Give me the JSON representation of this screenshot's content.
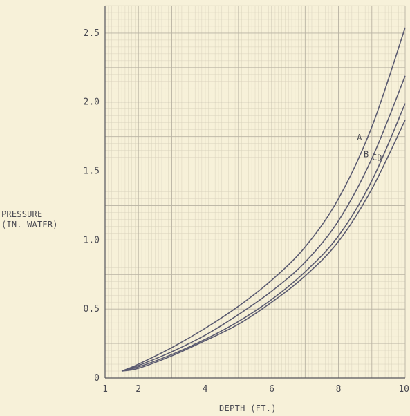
{
  "chart_data": {
    "type": "line",
    "title": "",
    "xlabel": "DEPTH (FT.)",
    "ylabel_lines": [
      "PRESSURE",
      "(IN. WATER)"
    ],
    "xlim": [
      1,
      10
    ],
    "ylim": [
      0,
      2.7
    ],
    "x_ticks": [
      {
        "value": 1,
        "label": "1"
      },
      {
        "value": 2,
        "label": "2"
      },
      {
        "value": 4,
        "label": "4"
      },
      {
        "value": 6,
        "label": "6"
      },
      {
        "value": 8,
        "label": "8"
      },
      {
        "value": 10,
        "label": "10"
      }
    ],
    "y_ticks": [
      {
        "value": 0,
        "label": "0"
      },
      {
        "value": 0.5,
        "label": "0.5"
      },
      {
        "value": 1.0,
        "label": "1.0"
      },
      {
        "value": 1.5,
        "label": "1.5"
      },
      {
        "value": 2.0,
        "label": "2.0"
      },
      {
        "value": 2.5,
        "label": "2.5"
      }
    ],
    "grid": true,
    "series": [
      {
        "name": "A",
        "x": [
          1.5,
          2,
          3,
          4,
          5,
          6,
          7,
          8,
          9,
          10
        ],
        "values": [
          0.05,
          0.1,
          0.22,
          0.36,
          0.52,
          0.71,
          0.95,
          1.3,
          1.82,
          2.54
        ]
      },
      {
        "name": "B",
        "x": [
          1.5,
          2,
          3,
          4,
          5,
          6,
          7,
          8,
          9,
          10
        ],
        "values": [
          0.05,
          0.09,
          0.19,
          0.31,
          0.46,
          0.63,
          0.84,
          1.14,
          1.59,
          2.19
        ]
      },
      {
        "name": "C",
        "x": [
          1.5,
          2,
          3,
          4,
          5,
          6,
          7,
          8,
          9,
          10
        ],
        "values": [
          0.05,
          0.08,
          0.17,
          0.28,
          0.41,
          0.57,
          0.77,
          1.03,
          1.43,
          1.99
        ]
      },
      {
        "name": "D",
        "x": [
          1.5,
          2,
          3,
          4,
          5,
          6,
          7,
          8,
          9,
          10
        ],
        "values": [
          0.05,
          0.07,
          0.16,
          0.27,
          0.39,
          0.55,
          0.74,
          0.99,
          1.37,
          1.87
        ]
      }
    ]
  }
}
